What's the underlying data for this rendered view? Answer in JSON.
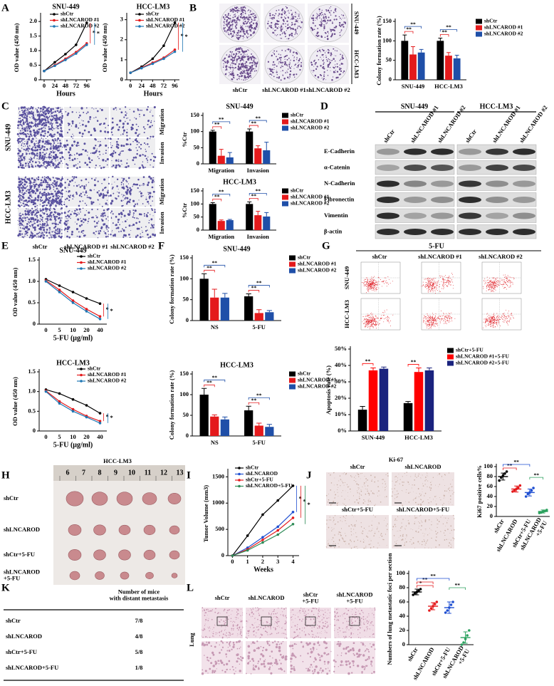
{
  "panels": [
    "A",
    "B",
    "C",
    "D",
    "E",
    "F",
    "G",
    "H",
    "I",
    "J",
    "K",
    "L"
  ],
  "chart_data": [
    {
      "type": "line",
      "title": "SNU-449",
      "x_label": "Hours",
      "y_label": "OD value (450 nm)",
      "x": [
        0,
        24,
        48,
        72,
        96
      ],
      "xlim": [
        -8,
        106
      ],
      "xticks": [
        0,
        24,
        48,
        72,
        96
      ],
      "ylim": [
        0,
        2.2
      ],
      "yticks": [
        0,
        0.5,
        {
          "value": 1,
          "label": "1.0"
        },
        1.5,
        {
          "value": 2,
          "label": "2.0"
        }
      ],
      "series": [
        {
          "name": "shCtr",
          "color": "#000000",
          "values": [
            0.3,
            0.6,
            0.88,
            1.2,
            1.95
          ]
        },
        {
          "name": "shLNCAROD #1",
          "color": "#e41a1c",
          "values": [
            0.3,
            0.5,
            0.72,
            0.95,
            1.25
          ]
        },
        {
          "name": "shLNCAROD #2",
          "color": "#1f77b4",
          "values": [
            0.3,
            0.48,
            0.68,
            0.9,
            1.2
          ]
        }
      ],
      "annotations": [
        "*",
        "*"
      ]
    },
    {
      "type": "line",
      "title": "HCC-LM3",
      "x_label": "Hours",
      "y_label": "OD value (450 nm)",
      "x": [
        0,
        24,
        48,
        72,
        96
      ],
      "xlim": [
        -8,
        106
      ],
      "xticks": [
        0,
        24,
        48,
        72,
        96
      ],
      "ylim": [
        0,
        3.2
      ],
      "yticks": [
        0,
        1,
        2,
        3
      ],
      "series": [
        {
          "name": "shCtr",
          "color": "#000000",
          "values": [
            0.35,
            0.65,
            1.05,
            1.7,
            2.85
          ]
        },
        {
          "name": "shLNCAROD #1",
          "color": "#e41a1c",
          "values": [
            0.35,
            0.6,
            0.85,
            1.1,
            1.5
          ]
        },
        {
          "name": "shLNCAROD #2",
          "color": "#1f77b4",
          "values": [
            0.35,
            0.58,
            0.8,
            1.05,
            1.4
          ]
        }
      ],
      "annotations": [
        "*",
        "*"
      ]
    },
    {
      "type": "bar",
      "y_label": "Colony formation rate (%)",
      "categories": [
        "SNU-449",
        "HCC-LM3"
      ],
      "ylim": [
        0,
        150
      ],
      "yticks": [
        0,
        50,
        100,
        150
      ],
      "series": [
        {
          "name": "shCtr",
          "color": "#000000",
          "values": [
            100,
            100
          ],
          "errors": [
            15,
            7
          ]
        },
        {
          "name": "shLNCAROD #1",
          "color": "#e41a1c",
          "values": [
            65,
            62
          ],
          "errors": [
            20,
            8
          ]
        },
        {
          "name": "shLNCAROD #2",
          "color": "#1f4fa8",
          "values": [
            70,
            55
          ],
          "errors": [
            8,
            8
          ]
        }
      ],
      "significance": [
        [
          "**",
          "**"
        ],
        [
          "**",
          "**"
        ]
      ]
    },
    {
      "type": "bar",
      "title": "SNU-449",
      "y_label": "%Ctr",
      "categories": [
        "Migration",
        "Invasion"
      ],
      "ylim": [
        0,
        150
      ],
      "yticks": [
        0,
        50,
        100,
        150
      ],
      "series": [
        {
          "name": "shCtr",
          "color": "#000000",
          "values": [
            100,
            100
          ],
          "errors": [
            4,
            8
          ]
        },
        {
          "name": "shLNCAROD #1",
          "color": "#e41a1c",
          "values": [
            25,
            48
          ],
          "errors": [
            20,
            8
          ]
        },
        {
          "name": "shLNCAROD #2",
          "color": "#1f4fa8",
          "values": [
            20,
            42
          ],
          "errors": [
            15,
            25
          ]
        }
      ],
      "significance": [
        [
          "**",
          "**"
        ],
        [
          "**",
          "**"
        ]
      ]
    },
    {
      "type": "bar",
      "title": "HCC-LM3",
      "y_label": "%Ctr",
      "categories": [
        "Migration",
        "Invasion"
      ],
      "ylim": [
        0,
        150
      ],
      "yticks": [
        0,
        50,
        100,
        150
      ],
      "series": [
        {
          "name": "shCtr",
          "color": "#000000",
          "values": [
            100,
            100
          ],
          "errors": [
            5,
            8
          ]
        },
        {
          "name": "shLNCAROD #1",
          "color": "#e41a1c",
          "values": [
            35,
            57
          ],
          "errors": [
            4,
            15
          ]
        },
        {
          "name": "shLNCAROD #2",
          "color": "#1f4fa8",
          "values": [
            38,
            52
          ],
          "errors": [
            3,
            15
          ]
        }
      ],
      "significance": [
        [
          "**",
          "**"
        ],
        [
          "**",
          "**"
        ]
      ]
    },
    {
      "type": "line",
      "title": "SNU-449",
      "x_label": "5-FU (μg/ml)",
      "y_label": "OD value (450 nm)",
      "categories": [
        "0",
        "5",
        "10",
        "20",
        "40"
      ],
      "ylim": [
        0,
        1.5
      ],
      "yticks": [
        0,
        0.5,
        {
          "value": 1,
          "label": "1.0"
        },
        1.5
      ],
      "series": [
        {
          "name": "shCtr",
          "color": "#000000",
          "values": [
            1.05,
            0.9,
            0.75,
            0.6,
            0.48
          ]
        },
        {
          "name": "shLNCAROD #1",
          "color": "#e41a1c",
          "values": [
            1.02,
            0.8,
            0.55,
            0.35,
            0.18
          ]
        },
        {
          "name": "shLNCAROD #2",
          "color": "#1f77b4",
          "values": [
            1.0,
            0.75,
            0.5,
            0.3,
            0.12
          ]
        }
      ],
      "annotations": [
        "*",
        "*"
      ]
    },
    {
      "type": "line",
      "title": "HCC-LM3",
      "x_label": "5-FU (μg/ml)",
      "y_label": "OD value (450 nm)",
      "categories": [
        "0",
        "5",
        "10",
        "20",
        "40"
      ],
      "ylim": [
        0,
        1.5
      ],
      "yticks": [
        0,
        0.5,
        {
          "value": 1,
          "label": "1.0"
        },
        1.5
      ],
      "series": [
        {
          "name": "shCtr",
          "color": "#000000",
          "values": [
            1.05,
            0.95,
            0.8,
            0.65,
            0.45
          ]
        },
        {
          "name": "shLNCAROD #1",
          "color": "#e41a1c",
          "values": [
            1.02,
            0.75,
            0.55,
            0.38,
            0.25
          ]
        },
        {
          "name": "shLNCAROD #2",
          "color": "#1f77b4",
          "values": [
            1.0,
            0.7,
            0.5,
            0.35,
            0.2
          ]
        }
      ],
      "annotations": [
        "*",
        "*"
      ]
    },
    {
      "type": "bar",
      "title": "SNU-449",
      "y_label": "Colony formation rate (%)",
      "categories": [
        "NS",
        "5-FU"
      ],
      "ylim": [
        0,
        150
      ],
      "yticks": [
        0,
        50,
        100,
        150
      ],
      "series": [
        {
          "name": "shCtr",
          "color": "#000000",
          "values": [
            100,
            58
          ],
          "errors": [
            12,
            6
          ]
        },
        {
          "name": "shLNCAROD #1",
          "color": "#e41a1c",
          "values": [
            55,
            18
          ],
          "errors": [
            20,
            8
          ]
        },
        {
          "name": "shLNCAROD #2",
          "color": "#1f4fa8",
          "values": [
            55,
            20
          ],
          "errors": [
            10,
            4
          ]
        }
      ],
      "significance": [
        [
          "**",
          "**"
        ],
        [
          "**",
          "**"
        ]
      ]
    },
    {
      "type": "bar",
      "title": "HCC-LM3",
      "y_label": "Colony formation rate (%)",
      "categories": [
        "NS",
        "5-FU"
      ],
      "ylim": [
        0,
        150
      ],
      "yticks": [
        0,
        50,
        100,
        150
      ],
      "series": [
        {
          "name": "shCtr",
          "color": "#000000",
          "values": [
            100,
            62
          ],
          "errors": [
            15,
            10
          ]
        },
        {
          "name": "shLNCAROD #1",
          "color": "#e41a1c",
          "values": [
            47,
            25
          ],
          "errors": [
            4,
            6
          ]
        },
        {
          "name": "shLNCAROD #2",
          "color": "#1f4fa8",
          "values": [
            40,
            22
          ],
          "errors": [
            6,
            6
          ]
        }
      ],
      "significance": [
        [
          "**",
          "**"
        ],
        [
          "**",
          "**"
        ]
      ]
    },
    {
      "type": "bar",
      "y_label": "Apoptosis rate (%)",
      "categories": [
        "SUN-449",
        "HCC-LM3"
      ],
      "ylim": [
        0,
        50
      ],
      "yticks": [
        {
          "value": 0,
          "label": "0%"
        },
        {
          "value": 10,
          "label": "10%"
        },
        {
          "value": 20,
          "label": "20%"
        },
        {
          "value": 30,
          "label": "30%"
        },
        {
          "value": 40,
          "label": "40%"
        },
        {
          "value": 50,
          "label": "50%"
        }
      ],
      "series": [
        {
          "name": "shCtr+5-FU",
          "color": "#000000",
          "values": [
            13,
            17
          ],
          "errors": [
            2,
            1
          ]
        },
        {
          "name": "shLNCAROD #1+5-FU",
          "color": "#ff0000",
          "values": [
            37,
            36
          ],
          "errors": [
            1.5,
            2.5
          ]
        },
        {
          "name": "shLNCAROD #2+5-FU",
          "color": "#1a237e",
          "values": [
            38,
            37
          ],
          "errors": [
            1,
            1.5
          ]
        }
      ],
      "significance": [
        [
          "**",
          "**"
        ]
      ]
    },
    {
      "type": "line",
      "x_label": "Weeks",
      "y_label": "Tumor Volume (mm3)",
      "x": [
        0,
        1,
        2,
        3,
        4
      ],
      "xlim": [
        -0.3,
        4.4
      ],
      "xticks": [
        0,
        1,
        2,
        3,
        4
      ],
      "ylim": [
        0,
        1600
      ],
      "yticks": [
        0,
        500,
        1000,
        1500
      ],
      "series": [
        {
          "name": "shCtr",
          "color": "#000000",
          "values": [
            0,
            380,
            780,
            1050,
            1330
          ]
        },
        {
          "name": "shLNCAROD",
          "color": "#1f4fd1",
          "values": [
            0,
            150,
            350,
            550,
            830
          ]
        },
        {
          "name": "shCtr+5-FU",
          "color": "#e41a1c",
          "values": [
            0,
            120,
            300,
            480,
            720
          ]
        },
        {
          "name": "shLNCAROD+5-FU",
          "color": "#2e8b57",
          "values": [
            0,
            100,
            250,
            400,
            600
          ]
        }
      ],
      "annotations": [
        "*",
        "*",
        "*"
      ]
    },
    {
      "type": "dot",
      "y_label": "Ki67 positive cells%",
      "categories": [
        "shCtr",
        "shLNCAROD",
        "shCtr+5-FU",
        "shLNCAROD\n+5-FU"
      ],
      "ylim": [
        0,
        100
      ],
      "yticks": [
        0,
        20,
        40,
        60,
        80,
        100
      ],
      "colors": [
        "#000000",
        "#e41a1c",
        "#1f4fd1",
        "#2ca25f"
      ],
      "values": [
        80,
        55,
        48,
        10
      ],
      "errors": [
        7,
        6,
        7,
        3
      ],
      "points": [
        [
          72,
          78,
          82,
          86,
          90
        ],
        [
          50,
          52,
          55,
          58,
          62
        ],
        [
          40,
          45,
          48,
          52,
          57
        ],
        [
          7,
          8,
          10,
          11,
          13
        ]
      ],
      "significance": [
        "**",
        "**",
        "**"
      ]
    },
    {
      "type": "dot",
      "y_label": "Numbers of lung metastatic foci per section",
      "categories": [
        "shCtr",
        "shLNCAROD",
        "shCtr+5-FU",
        "shLNCAROD\n+5-FU"
      ],
      "ylim": [
        0,
        100
      ],
      "yticks": [
        0,
        20,
        40,
        60,
        80,
        100
      ],
      "colors": [
        "#000000",
        "#e41a1c",
        "#1f4fd1",
        "#2ca25f"
      ],
      "values": [
        74,
        54,
        52,
        10
      ],
      "errors": [
        4,
        5,
        8,
        8
      ],
      "points": [
        [
          70,
          72,
          74,
          76,
          78
        ],
        [
          48,
          51,
          54,
          57,
          60
        ],
        [
          45,
          48,
          52,
          56,
          60
        ],
        [
          0,
          3,
          8,
          13,
          20
        ]
      ],
      "significance": [
        "*",
        "**",
        "**",
        "**"
      ]
    }
  ],
  "images": {
    "B": {
      "columns": [
        "shCtr",
        "shLNCAROD #1",
        "shLNCAROD #2"
      ],
      "rows": [
        "SNU-449",
        "HCC-LM3"
      ]
    },
    "C": {
      "columns": [
        "shCtr",
        "shLNCAROD #1",
        "shLNCAROD #2"
      ],
      "rows": [
        "SNU-449",
        "HCC-LM3"
      ],
      "assays": [
        "Migration",
        "Invasion",
        "Migration",
        "Invasion"
      ]
    },
    "D": {
      "groups": [
        "SNU-449",
        "HCC-LM3"
      ],
      "lanes": [
        "shCtr",
        "shLNCAROD #1",
        "shLNCAROD #2"
      ],
      "proteins": [
        "E-Cadherin",
        "α-Catenin",
        "N-Cadherin",
        "Fibronectin",
        "Vimentin",
        "β-actin"
      ]
    },
    "G": {
      "title": "5-FU",
      "columns": [
        "shCtr",
        "shLNCAROD #1",
        "shLNCAROD #2"
      ],
      "rows": [
        "SNU-449",
        "HCC-LM3"
      ]
    },
    "H": {
      "title": "HCC-LM3",
      "ruler": [
        6,
        7,
        8,
        9,
        10,
        11,
        12,
        13
      ],
      "rows": [
        "shCtr",
        "shLNCAROD",
        "shCtr+5-FU",
        "shLNCAROD\n+5-FU"
      ]
    },
    "J": {
      "title": "Ki-67",
      "panels": [
        "shCtr",
        "shLNCAROD",
        "shCtr+5-FU",
        "shLNCAROD+5-FU"
      ]
    },
    "L": {
      "row_label": "Lung",
      "columns": [
        "shCtr",
        "shLNCAROD",
        "shCtr\n+5-FU",
        "shLNCAROD\n+5-FU"
      ]
    }
  },
  "table": {
    "header": "Number of mice\nwith distant metastasis",
    "rows": [
      [
        "shCtr",
        "7/8"
      ],
      [
        "shLNCAROD",
        "4/8"
      ],
      [
        "shCtr+5-FU",
        "5/8"
      ],
      [
        "shLNCAROD+5-FU",
        "1/8"
      ]
    ]
  }
}
